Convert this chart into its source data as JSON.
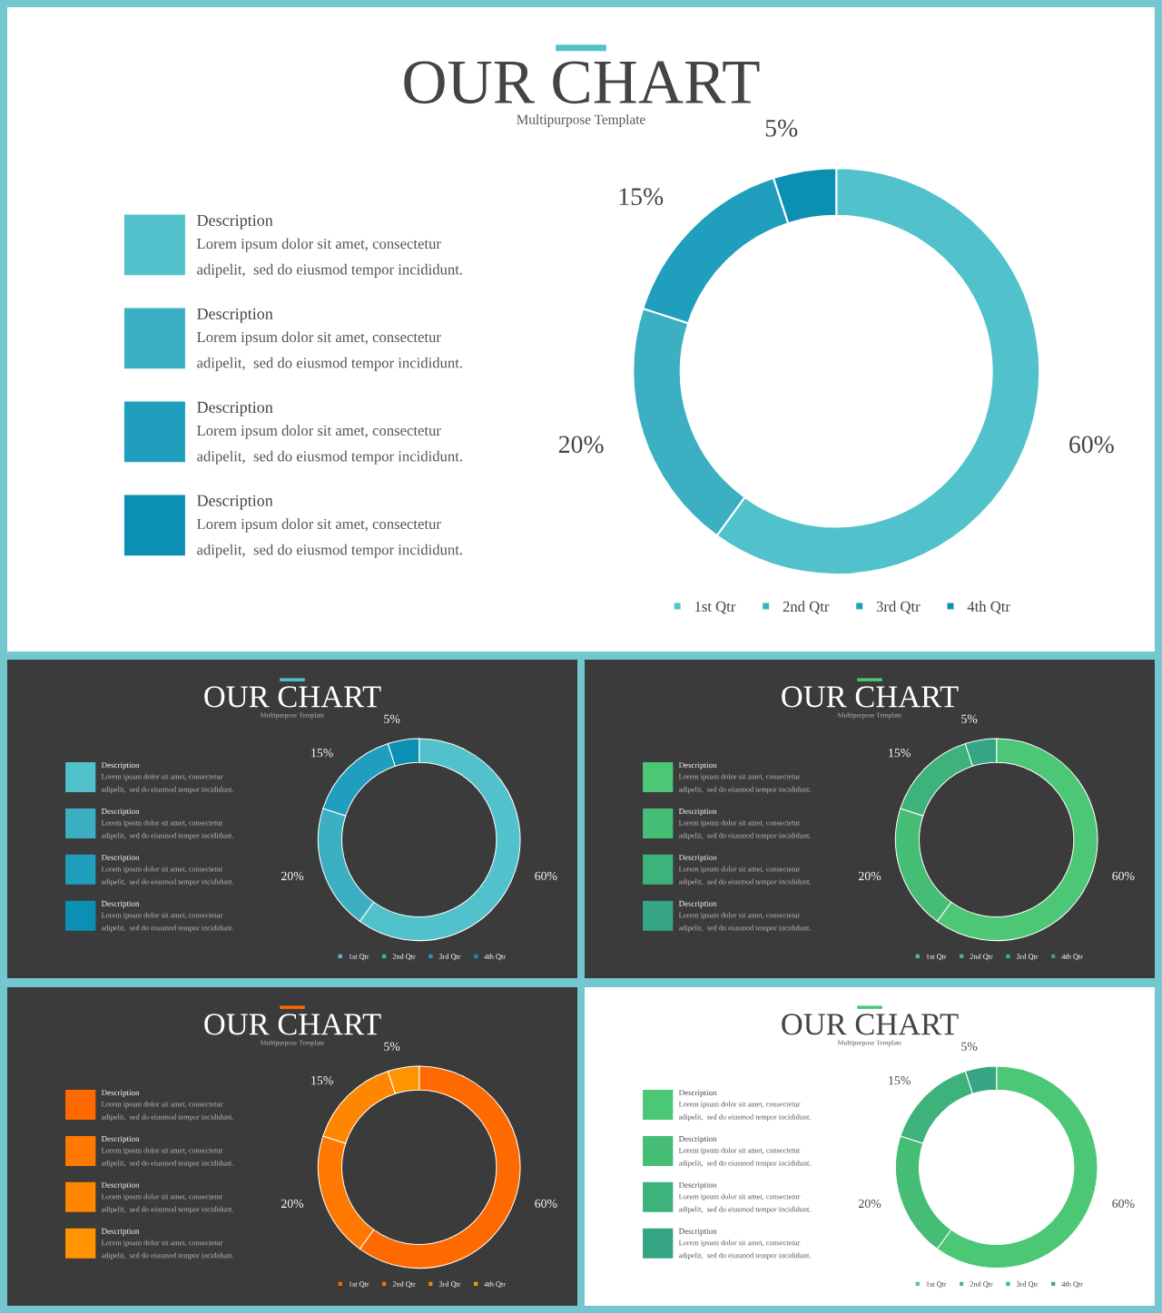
{
  "chart_data": [
    {
      "type": "donut",
      "title": "OUR CHART",
      "subtitle": "Multipurpose Template",
      "categories": [
        "1st Qtr",
        "2nd Qtr",
        "3rd Qtr",
        "4th Qtr"
      ],
      "values": [
        60,
        20,
        15,
        5
      ],
      "value_labels": [
        "60%",
        "20%",
        "15%",
        "5%"
      ],
      "colors": [
        "#51c2cb",
        "#3cb0c2",
        "#1f9fbd",
        "#0b8fb2"
      ],
      "legend": "bottom",
      "annotations": [
        "Description",
        "Lorem ipsum dolor sit amet, consectetur",
        "adipelit,  sed do eiusmod tempor incididunt.",
        "Description",
        "Lorem ipsum dolor sit amet, consectetur",
        "adipelit,  sed do eiusmod tempor incididunt.",
        "Description",
        "Lorem ipsum dolor sit amet, consectetur",
        "adipelit,  sed do eiusmod tempor incididunt.",
        "Description",
        "Lorem ipsum dolor sit amet, consectetur",
        "adipelit,  sed do eiusmod tempor incididunt."
      ]
    },
    {
      "type": "donut",
      "title": "OUR CHART",
      "subtitle": "Multipurpose Template",
      "categories": [
        "1st Qtr",
        "2nd Qtr",
        "3rd Qtr",
        "4th Qtr"
      ],
      "values": [
        60,
        20,
        15,
        5
      ],
      "value_labels": [
        "60%",
        "20%",
        "15%",
        "5%"
      ],
      "colors": [
        "#51c2cb",
        "#3cb0c2",
        "#1f9fbd",
        "#0b8fb2"
      ],
      "legend": "bottom",
      "annotations": [
        "Description",
        "Lorem ipsum dolor sit amet, consectetur",
        "adipelit,  sed do eiusmod tempor incididunt.",
        "Description",
        "Lorem ipsum dolor sit amet, consectetur",
        "adipelit,  sed do eiusmod tempor incididunt.",
        "Description",
        "Lorem ipsum dolor sit amet, consectetur",
        "adipelit,  sed do eiusmod tempor incididunt.",
        "Description",
        "Lorem ipsum dolor sit amet, consectetur",
        "adipelit,  sed do eiusmod tempor incididunt."
      ]
    },
    {
      "type": "donut",
      "title": "OUR CHART",
      "subtitle": "Multipurpose Template",
      "categories": [
        "1st Qtr",
        "2nd Qtr",
        "3rd Qtr",
        "4th Qtr"
      ],
      "values": [
        60,
        20,
        15,
        5
      ],
      "value_labels": [
        "60%",
        "20%",
        "15%",
        "5%"
      ],
      "colors": [
        "#4cc776",
        "#45bd74",
        "#3db27b",
        "#36a584"
      ],
      "legend": "bottom",
      "annotations": [
        "Description",
        "Lorem ipsum dolor sit amet, consectetur",
        "adipelit,  sed do eiusmod tempor incididunt.",
        "Description",
        "Lorem ipsum dolor sit amet, consectetur",
        "adipelit,  sed do eiusmod tempor incididunt.",
        "Description",
        "Lorem ipsum dolor sit amet, consectetur",
        "adipelit,  sed do eiusmod tempor incididunt.",
        "Description",
        "Lorem ipsum dolor sit amet, consectetur",
        "adipelit,  sed do eiusmod tempor incididunt."
      ]
    },
    {
      "type": "donut",
      "title": "OUR CHART",
      "subtitle": "Multipurpose Template",
      "categories": [
        "1st Qtr",
        "2nd Qtr",
        "3rd Qtr",
        "4th Qtr"
      ],
      "values": [
        60,
        20,
        15,
        5
      ],
      "value_labels": [
        "60%",
        "20%",
        "15%",
        "5%"
      ],
      "colors": [
        "#ff6a00",
        "#ff7800",
        "#ff8700",
        "#ff9400"
      ],
      "legend": "bottom",
      "annotations": [
        "Description",
        "Lorem ipsum dolor sit amet, consectetur",
        "adipelit,  sed do eiusmod tempor incididunt.",
        "Description",
        "Lorem ipsum dolor sit amet, consectetur",
        "adipelit,  sed do eiusmod tempor incididunt.",
        "Description",
        "Lorem ipsum dolor sit amet, consectetur",
        "adipelit,  sed do eiusmod tempor incididunt.",
        "Description",
        "Lorem ipsum dolor sit amet, consectetur",
        "adipelit,  sed do eiusmod tempor incididunt."
      ]
    },
    {
      "type": "donut",
      "title": "OUR CHART",
      "subtitle": "Multipurpose Template",
      "categories": [
        "1st Qtr",
        "2nd Qtr",
        "3rd Qtr",
        "4th Qtr"
      ],
      "values": [
        60,
        20,
        15,
        5
      ],
      "value_labels": [
        "60%",
        "20%",
        "15%",
        "5%"
      ],
      "colors": [
        "#4cc776",
        "#45bd74",
        "#3db27b",
        "#36a584"
      ],
      "legend": "bottom",
      "annotations": [
        "Description",
        "Lorem ipsum dolor sit amet, consectetur",
        "adipelit,  sed do eiusmod tempor incididunt.",
        "Description",
        "Lorem ipsum dolor sit amet, consectetur",
        "adipelit,  sed do eiusmod tempor incididunt.",
        "Description",
        "Lorem ipsum dolor sit amet, consectetur",
        "adipelit,  sed do eiusmod tempor incididunt.",
        "Description",
        "Lorem ipsum dolor sit amet, consectetur",
        "adipelit,  sed do eiusmod tempor incididunt."
      ]
    }
  ]
}
